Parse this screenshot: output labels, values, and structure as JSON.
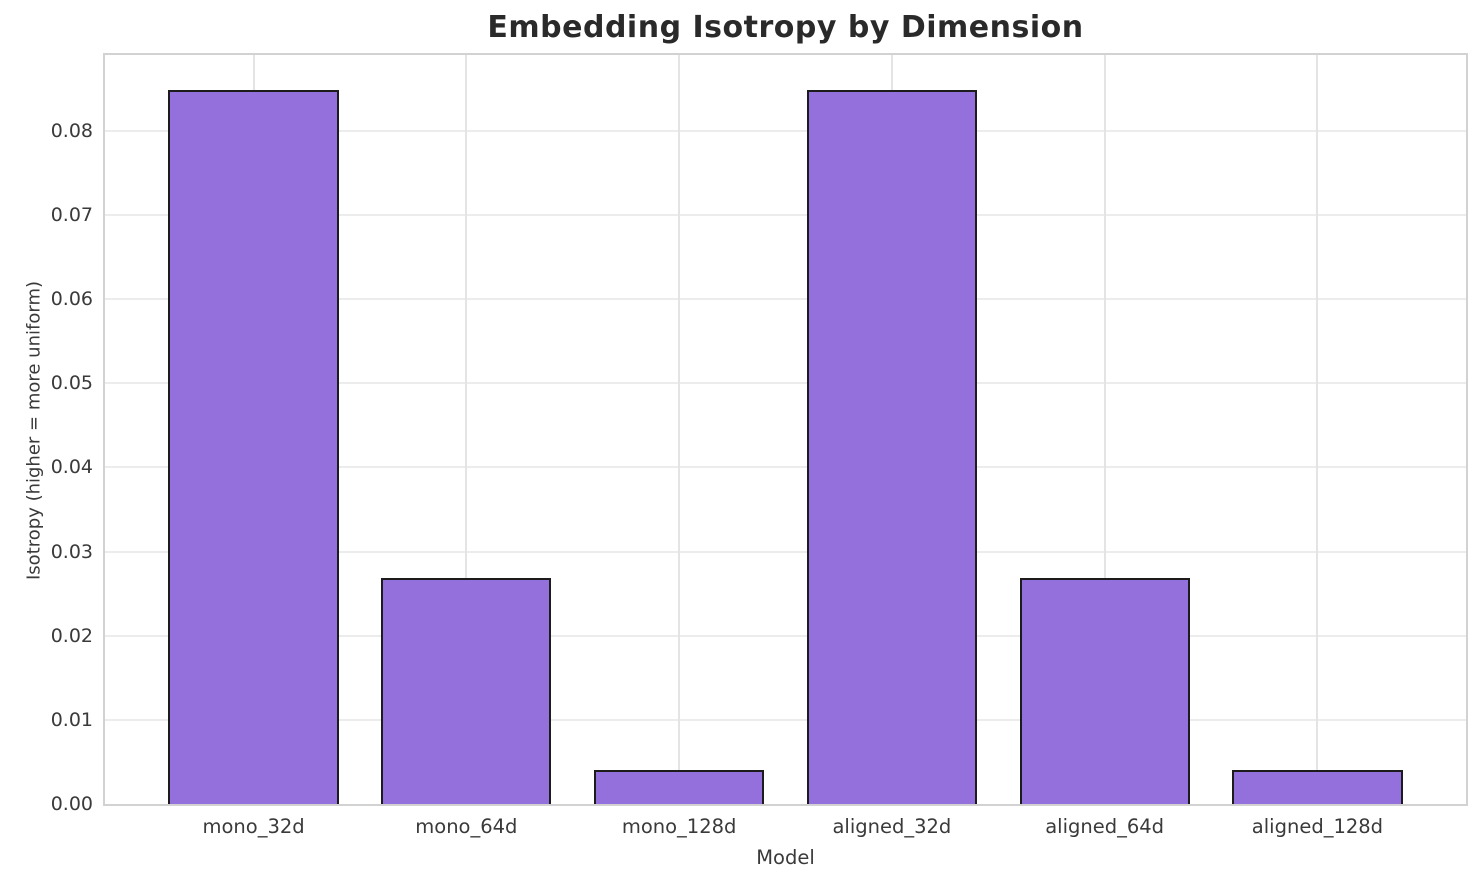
{
  "chart_data": {
    "type": "bar",
    "title": "Embedding Isotropy by Dimension",
    "xlabel": "Model",
    "ylabel": "Isotropy (higher = more uniform)",
    "categories": [
      "mono_32d",
      "mono_64d",
      "mono_128d",
      "aligned_32d",
      "aligned_64d",
      "aligned_128d"
    ],
    "values": [
      0.0848,
      0.0269,
      0.004,
      0.0848,
      0.0269,
      0.004
    ],
    "ylim": [
      0,
      0.089
    ],
    "yticks": [
      0.0,
      0.01,
      0.02,
      0.03,
      0.04,
      0.05,
      0.06,
      0.07,
      0.08
    ],
    "ytick_labels": [
      "0.00",
      "0.01",
      "0.02",
      "0.03",
      "0.04",
      "0.05",
      "0.06",
      "0.07",
      "0.08"
    ],
    "grid": true,
    "legend_position": "none",
    "bar_color": "#9370DB",
    "bar_edge_color": "#1c1c1c",
    "grid_color": "#ececec",
    "spine_color": "#d2d2d2",
    "text_color": "#3a3a3a",
    "title_color": "#2a2a2a"
  }
}
